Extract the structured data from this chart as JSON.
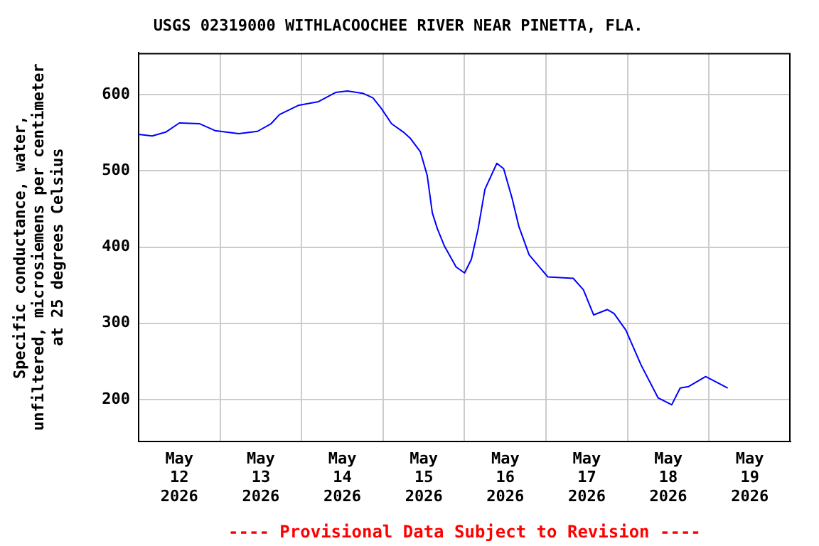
{
  "chart_data": {
    "type": "line",
    "title": "USGS 02319000 WITHLACOOCHEE RIVER NEAR PINETTA, FLA.",
    "ylabel": "Specific conductance, water,\nunfiltered, microsiemens per centimeter\nat 25 degrees Celsius",
    "annotations": [
      "---- Provisional Data Subject to Revision ----"
    ],
    "x": [
      "2026-05-12T00:00",
      "2026-05-12T04:00",
      "2026-05-12T08:00",
      "2026-05-12T12:00",
      "2026-05-12T18:00",
      "2026-05-12T22:30",
      "2026-05-13T05:30",
      "2026-05-13T11:00",
      "2026-05-13T15:00",
      "2026-05-13T17:30",
      "2026-05-13T23:00",
      "2026-05-14T05:00",
      "2026-05-14T10:00",
      "2026-05-14T13:30",
      "2026-05-14T18:00",
      "2026-05-14T21:00",
      "2026-05-14T23:30",
      "2026-05-15T02:30",
      "2026-05-15T06:00",
      "2026-05-15T08:00",
      "2026-05-15T11:00",
      "2026-05-15T13:00",
      "2026-05-15T14:30",
      "2026-05-15T16:00",
      "2026-05-15T18:00",
      "2026-05-15T21:30",
      "2026-05-16T00:00",
      "2026-05-16T02:00",
      "2026-05-16T04:00",
      "2026-05-16T06:00",
      "2026-05-16T09:30",
      "2026-05-16T11:30",
      "2026-05-16T14:00",
      "2026-05-16T16:00",
      "2026-05-16T19:00",
      "2026-05-17T00:30",
      "2026-05-17T08:00",
      "2026-05-17T11:00",
      "2026-05-17T14:00",
      "2026-05-17T18:00",
      "2026-05-17T20:00",
      "2026-05-17T23:30",
      "2026-05-18T04:00",
      "2026-05-18T09:00",
      "2026-05-18T13:00",
      "2026-05-18T15:30",
      "2026-05-18T18:00",
      "2026-05-18T23:00",
      "2026-05-19T05:30"
    ],
    "series": [
      {
        "color": "#0000ff",
        "values": [
          548,
          546,
          551,
          563,
          562,
          553,
          549,
          552,
          562,
          574,
          586,
          591,
          603,
          605,
          602,
          596,
          582,
          562,
          551,
          543,
          525,
          494,
          445,
          424,
          402,
          374,
          366,
          384,
          424,
          476,
          510,
          503,
          464,
          427,
          390,
          361,
          359,
          344,
          311,
          318,
          313,
          291,
          245,
          202,
          193,
          215,
          217,
          230,
          215
        ]
      }
    ],
    "xlim": [
      "2026-05-12T00:00",
      "2026-05-20T00:00"
    ],
    "xticks": [
      {
        "value": "2026-05-13T00:00",
        "label": null
      },
      {
        "value": "2026-05-14T00:00",
        "label": null
      },
      {
        "value": "2026-05-15T00:00",
        "label": null
      },
      {
        "value": "2026-05-16T00:00",
        "label": null
      },
      {
        "value": "2026-05-17T00:00",
        "label": null
      },
      {
        "value": "2026-05-18T00:00",
        "label": null
      },
      {
        "value": "2026-05-19T00:00",
        "label": null
      },
      {
        "value": "2026-05-12T12:00",
        "label": "May\n12\n2026"
      },
      {
        "value": "2026-05-13T12:00",
        "label": "May\n13\n2026"
      },
      {
        "value": "2026-05-14T12:00",
        "label": "May\n14\n2026"
      },
      {
        "value": "2026-05-15T12:00",
        "label": "May\n15\n2026"
      },
      {
        "value": "2026-05-16T12:00",
        "label": "May\n16\n2026"
      },
      {
        "value": "2026-05-17T12:00",
        "label": "May\n17\n2026"
      },
      {
        "value": "2026-05-18T12:00",
        "label": "May\n18\n2026"
      },
      {
        "value": "2026-05-19T12:00",
        "label": "May\n19\n2026"
      }
    ],
    "ylim": [
      145,
      655
    ],
    "yticks": [
      200,
      300,
      400,
      500,
      600
    ],
    "grid": true,
    "legend": false,
    "marker": "none",
    "line_style": "solid"
  }
}
